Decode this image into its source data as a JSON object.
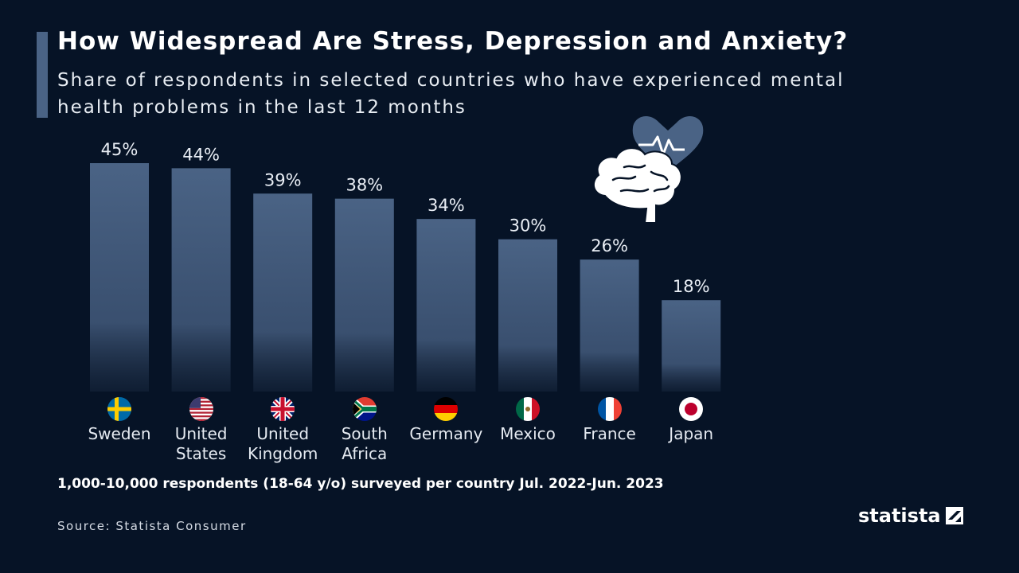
{
  "header": {
    "title": "How Widespread Are Stress, Depression and Anxiety?",
    "subtitle": "Share of respondents in selected countries who have experienced mental health problems in the last 12 months"
  },
  "chart_data": {
    "type": "bar",
    "title": "How Widespread Are Stress, Depression and Anxiety?",
    "subtitle": "Share of respondents in selected countries who have experienced mental health problems in the last 12 months",
    "categories": [
      "Sweden",
      "United States",
      "United Kingdom",
      "South Africa",
      "Germany",
      "Mexico",
      "France",
      "Japan"
    ],
    "values": [
      45,
      44,
      39,
      38,
      34,
      30,
      26,
      18
    ],
    "value_labels": [
      "45%",
      "44%",
      "39%",
      "38%",
      "34%",
      "30%",
      "26%",
      "18%"
    ],
    "unit": "%",
    "xlabel": "",
    "ylabel": "",
    "ylim": [
      0,
      45
    ],
    "grid": false,
    "bar_color": "#4a6385"
  },
  "categories_display": [
    {
      "line1": "Sweden",
      "line2": ""
    },
    {
      "line1": "United",
      "line2": "States"
    },
    {
      "line1": "United",
      "line2": "Kingdom"
    },
    {
      "line1": "South",
      "line2": "Africa"
    },
    {
      "line1": "Germany",
      "line2": ""
    },
    {
      "line1": "Mexico",
      "line2": ""
    },
    {
      "line1": "France",
      "line2": ""
    },
    {
      "line1": "Japan",
      "line2": ""
    }
  ],
  "flags": [
    "sweden-flag-icon",
    "usa-flag-icon",
    "uk-flag-icon",
    "south-africa-flag-icon",
    "germany-flag-icon",
    "mexico-flag-icon",
    "france-flag-icon",
    "japan-flag-icon"
  ],
  "footer": {
    "note": "1,000-10,000 respondents (18-64 y/o) surveyed per country Jul. 2022-Jun. 2023",
    "source": "Source: Statista Consumer",
    "brand": "statista"
  },
  "colors": {
    "background": "#061326",
    "bar": "#4a6385",
    "accent": "#4a6385",
    "text": "#ffffff"
  }
}
